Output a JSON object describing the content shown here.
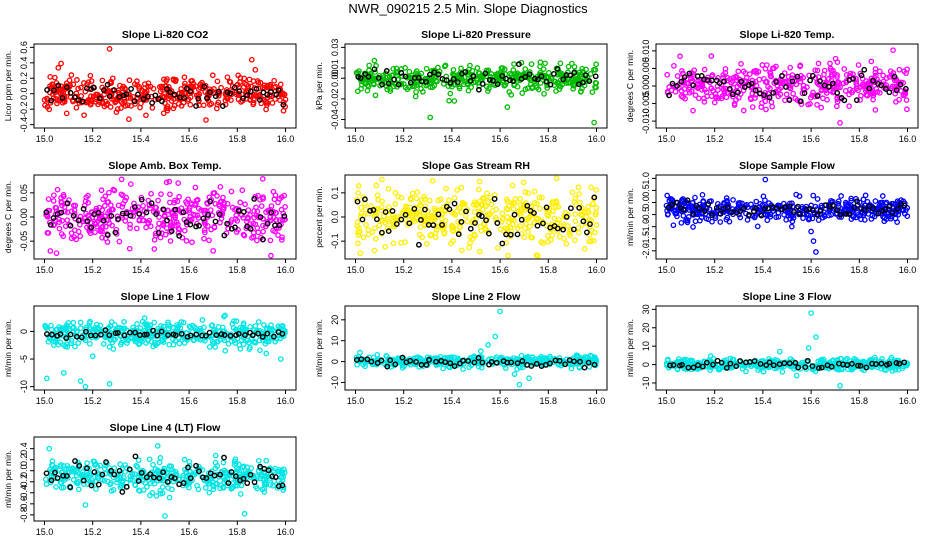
{
  "page_title": "NWR_090215  2.5 Min. Slope Diagnostics",
  "chart_data": [
    {
      "type": "scatter",
      "title": "Slope Li-820 CO2",
      "ylabel": "Licor ppm per min.",
      "color": "#ff0000",
      "xlim": [
        15.0,
        16.0
      ],
      "ylim": [
        -0.4,
        0.6
      ],
      "x_ticks": [
        "15.0",
        "15.2",
        "15.4",
        "15.6",
        "15.8",
        "16.0"
      ],
      "y_ticks": [
        {
          "value": -0.4,
          "label": "-0.4"
        },
        {
          "value": -0.2,
          "label": "-0.2"
        },
        {
          "value": 0.0,
          "label": "0.0"
        },
        {
          "value": 0.2,
          "label": "0.2"
        },
        {
          "value": 0.4,
          "label": "0.4"
        },
        {
          "value": 0.6,
          "label": "0.6"
        }
      ],
      "n_colored": 420,
      "n_black": 60,
      "center": 0.0,
      "spread": 0.11,
      "black_spread": 0.07,
      "seed": 11,
      "outliers": [
        [
          15.27,
          0.58
        ],
        [
          15.35,
          -0.33
        ],
        [
          15.67,
          -0.34
        ],
        [
          15.86,
          0.44
        ]
      ]
    },
    {
      "type": "scatter",
      "title": "Slope Li-820 Pressure",
      "ylabel": "kPa per min.",
      "color": "#00bb00",
      "xlim": [
        15.0,
        16.0
      ],
      "ylim": [
        -0.045,
        0.03
      ],
      "x_ticks": [
        "15.0",
        "15.2",
        "15.4",
        "15.6",
        "15.8",
        "16.0"
      ],
      "y_ticks": [
        {
          "value": -0.04,
          "label": "-0.04"
        },
        {
          "value": -0.02,
          "label": "-0.02"
        },
        {
          "value": 0.0,
          "label": "0.00"
        },
        {
          "value": 0.01,
          "label": "0.01"
        },
        {
          "value": 0.03,
          "label": "0.03"
        }
      ],
      "n_colored": 420,
      "n_black": 60,
      "center": 0.0,
      "spread": 0.006,
      "black_spread": 0.004,
      "seed": 23,
      "outliers": [
        [
          15.31,
          -0.038
        ],
        [
          15.41,
          -0.022
        ],
        [
          15.63,
          -0.028
        ],
        [
          15.99,
          -0.043
        ]
      ]
    },
    {
      "type": "scatter",
      "title": "Slope Li-820 Temp.",
      "ylabel": "degrees C per min.",
      "color": "#ff00ff",
      "xlim": [
        15.0,
        16.0
      ],
      "ylim": [
        -0.011,
        0.011
      ],
      "x_ticks": [
        "15.0",
        "15.2",
        "15.4",
        "15.6",
        "15.8",
        "16.0"
      ],
      "y_ticks": [
        {
          "value": -0.01,
          "label": "-0.010"
        },
        {
          "value": -0.005,
          "label": "-0.005"
        },
        {
          "value": 0.0,
          "label": "0.000"
        },
        {
          "value": 0.005,
          "label": "0.005"
        },
        {
          "value": 0.01,
          "label": "0.010"
        }
      ],
      "n_colored": 420,
      "n_black": 60,
      "center": 0.0,
      "spread": 0.0028,
      "black_spread": 0.002,
      "seed": 37,
      "outliers": [
        [
          15.72,
          -0.0105
        ],
        [
          15.94,
          0.0102
        ],
        [
          15.11,
          -0.007
        ]
      ]
    },
    {
      "type": "scatter",
      "title": "Slope Amb. Box Temp.",
      "ylabel": "degrees C per min.",
      "color": "#ff00ff",
      "xlim": [
        15.0,
        16.0
      ],
      "ylim": [
        -0.08,
        0.08
      ],
      "x_ticks": [
        "15.0",
        "15.2",
        "15.4",
        "15.6",
        "15.8",
        "16.0"
      ],
      "y_ticks": [
        {
          "value": -0.05,
          "label": "-0.05"
        },
        {
          "value": 0.0,
          "label": "0.00"
        },
        {
          "value": 0.05,
          "label": "0.05"
        }
      ],
      "n_colored": 420,
      "n_black": 60,
      "center": 0.0,
      "spread": 0.028,
      "black_spread": 0.02,
      "seed": 41,
      "outliers": [
        [
          15.32,
          0.078
        ],
        [
          15.05,
          -0.075
        ],
        [
          15.7,
          -0.07
        ]
      ]
    },
    {
      "type": "scatter",
      "title": "Slope Gas Stream RH",
      "ylabel": "percent per min.",
      "color": "#ffee00",
      "xlim": [
        15.0,
        16.0
      ],
      "ylim": [
        -0.16,
        0.16
      ],
      "x_ticks": [
        "15.0",
        "15.2",
        "15.4",
        "15.6",
        "15.8",
        "16.0"
      ],
      "y_ticks": [
        {
          "value": -0.1,
          "label": "-0.1"
        },
        {
          "value": 0.0,
          "label": "0.0"
        },
        {
          "value": 0.1,
          "label": "0.1"
        }
      ],
      "n_colored": 420,
      "n_black": 60,
      "center": 0.0,
      "spread": 0.06,
      "black_spread": 0.045,
      "seed": 53,
      "outliers": [
        [
          15.11,
          0.155
        ],
        [
          15.32,
          0.15
        ],
        [
          15.02,
          -0.15
        ]
      ]
    },
    {
      "type": "scatter",
      "title": "Slope Sample Flow",
      "ylabel": "ml/min per min.",
      "color": "#0000ff",
      "xlim": [
        15.0,
        16.0
      ],
      "ylim": [
        -2.2,
        1.0
      ],
      "x_ticks": [
        "15.0",
        "15.2",
        "15.4",
        "15.6",
        "15.8",
        "16.0"
      ],
      "y_ticks": [
        {
          "value": -2.0,
          "label": "-2.0"
        },
        {
          "value": -1.5,
          "label": "-1.5"
        },
        {
          "value": -1.0,
          "label": "-1.0"
        },
        {
          "value": -0.5,
          "label": "-0.5"
        },
        {
          "value": 0.0,
          "label": "0.0"
        },
        {
          "value": 0.5,
          "label": "0.5"
        },
        {
          "value": 1.0,
          "label": "1.0"
        }
      ],
      "n_colored": 420,
      "n_black": 60,
      "center": -0.3,
      "spread": 0.22,
      "black_spread": 0.15,
      "seed": 67,
      "outliers": [
        [
          15.41,
          0.95
        ],
        [
          15.6,
          -1.2
        ],
        [
          15.61,
          -1.6
        ],
        [
          15.62,
          -2.05
        ],
        [
          15.52,
          -1.0
        ]
      ]
    },
    {
      "type": "scatter",
      "title": "Slope Line 1 Flow",
      "ylabel": "ml/min per min.",
      "color": "#00e5e5",
      "xlim": [
        15.0,
        16.0
      ],
      "ylim": [
        -10,
        4
      ],
      "x_ticks": [
        "15.0",
        "15.2",
        "15.4",
        "15.6",
        "15.8",
        "16.0"
      ],
      "y_ticks": [
        {
          "value": -10,
          "label": "-10"
        },
        {
          "value": -5,
          "label": "-5"
        },
        {
          "value": 0,
          "label": "0"
        }
      ],
      "n_colored": 420,
      "n_black": 50,
      "center": -0.5,
      "spread": 1.1,
      "black_spread": 0.3,
      "seed": 79,
      "outliers": [
        [
          15.15,
          -9.0
        ],
        [
          15.17,
          -10.2
        ],
        [
          15.27,
          -9.5
        ],
        [
          15.08,
          -7.5
        ],
        [
          15.01,
          -8.5
        ],
        [
          15.2,
          -4.5
        ],
        [
          15.92,
          -4.0
        ],
        [
          15.98,
          -5.0
        ],
        [
          15.75,
          -3.5
        ],
        [
          15.85,
          -3.2
        ]
      ]
    },
    {
      "type": "scatter",
      "title": "Slope Line 2 Flow",
      "ylabel": "ml/min per min.",
      "color": "#00e5e5",
      "xlim": [
        15.0,
        16.0
      ],
      "ylim": [
        -12,
        25
      ],
      "x_ticks": [
        "15.0",
        "15.2",
        "15.4",
        "15.6",
        "15.8",
        "16.0"
      ],
      "y_ticks": [
        {
          "value": -10,
          "label": "-10"
        },
        {
          "value": 0,
          "label": "0"
        },
        {
          "value": 10,
          "label": "10"
        },
        {
          "value": 20,
          "label": "20"
        }
      ],
      "n_colored": 420,
      "n_black": 50,
      "center": 0.0,
      "spread": 1.4,
      "black_spread": 1.2,
      "seed": 97,
      "outliers": [
        [
          15.6,
          24.0
        ],
        [
          15.58,
          12.0
        ],
        [
          15.55,
          8.0
        ],
        [
          15.68,
          -11.0
        ],
        [
          15.66,
          -6.0
        ],
        [
          15.72,
          -8.0
        ],
        [
          15.52,
          5.0
        ]
      ]
    },
    {
      "type": "scatter",
      "title": "Slope Line 3 Flow",
      "ylabel": "ml/min per min.",
      "color": "#00e5e5",
      "xlim": [
        15.0,
        16.0
      ],
      "ylim": [
        -12,
        30
      ],
      "x_ticks": [
        "15.0",
        "15.2",
        "15.4",
        "15.6",
        "15.8",
        "16.0"
      ],
      "y_ticks": [
        {
          "value": -10,
          "label": "-10"
        },
        {
          "value": 0,
          "label": "0"
        },
        {
          "value": 10,
          "label": "10"
        },
        {
          "value": 20,
          "label": "20"
        },
        {
          "value": 30,
          "label": "30"
        }
      ],
      "n_colored": 420,
      "n_black": 50,
      "center": 0.0,
      "spread": 1.6,
      "black_spread": 1.2,
      "seed": 113,
      "outliers": [
        [
          15.6,
          28.0
        ],
        [
          15.62,
          15.0
        ],
        [
          15.59,
          9.0
        ],
        [
          15.72,
          -11.5
        ],
        [
          15.54,
          -6.0
        ],
        [
          15.47,
          7.0
        ]
      ]
    },
    {
      "type": "scatter",
      "title": "Slope Line 4 (LT) Flow",
      "ylabel": "ml/min per min.",
      "color": "#00e5e5",
      "xlim": [
        15.0,
        16.0
      ],
      "ylim": [
        -0.85,
        0.55
      ],
      "x_ticks": [
        "15.0",
        "15.2",
        "15.4",
        "15.6",
        "15.8",
        "16.0"
      ],
      "y_ticks": [
        {
          "value": -0.8,
          "label": "-0.8"
        },
        {
          "value": -0.6,
          "label": "-0.6"
        },
        {
          "value": -0.4,
          "label": "-0.4"
        },
        {
          "value": -0.2,
          "label": "-0.2"
        },
        {
          "value": 0.0,
          "label": "0.0"
        },
        {
          "value": 0.2,
          "label": "0.2"
        },
        {
          "value": 0.4,
          "label": "0.4"
        }
      ],
      "n_colored": 420,
      "n_black": 60,
      "center": -0.1,
      "spread": 0.13,
      "black_spread": 0.11,
      "seed": 131,
      "outliers": [
        [
          15.5,
          -0.82
        ],
        [
          15.83,
          -0.78
        ],
        [
          15.17,
          -0.62
        ],
        [
          15.47,
          0.45
        ],
        [
          15.02,
          0.4
        ]
      ]
    }
  ]
}
